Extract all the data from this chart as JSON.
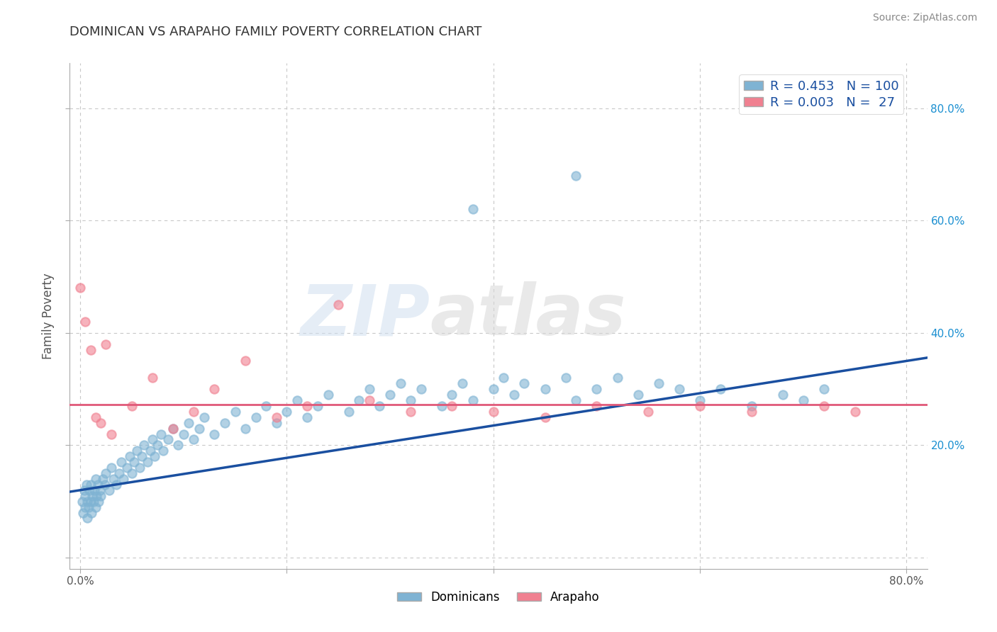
{
  "title": "DOMINICAN VS ARAPAHO FAMILY POVERTY CORRELATION CHART",
  "source": "Source: ZipAtlas.com",
  "ylabel": "Family Poverty",
  "xlim": [
    -0.01,
    0.82
  ],
  "ylim": [
    -0.02,
    0.88
  ],
  "xticks": [
    0.0,
    0.2,
    0.4,
    0.6,
    0.8
  ],
  "xtick_labels": [
    "0.0%",
    "",
    "",
    "",
    "80.0%"
  ],
  "yticks": [
    0.0,
    0.2,
    0.4,
    0.6,
    0.8
  ],
  "right_ytick_labels": [
    "",
    "20.0%",
    "40.0%",
    "60.0%",
    "80.0%"
  ],
  "dominican_color": "#7fb3d3",
  "arapaho_color": "#f08090",
  "dominican_R": 0.453,
  "dominican_N": 100,
  "arapaho_R": 0.003,
  "arapaho_N": 27,
  "trend_blue": "#1a4fa0",
  "trend_pink": "#e05878",
  "watermark": "ZIPatlas",
  "watermark_blue": "#d0dff0",
  "watermark_gray": "#d8d8d8",
  "grid_color": "#c8c8c8",
  "title_color": "#333333",
  "legend_R_color": "#1a4fa0",
  "legend_N_color": "#1a4fa0",
  "dot_size": 80,
  "dot_alpha": 0.6,
  "background_color": "#ffffff",
  "dominican_x": [
    0.002,
    0.003,
    0.004,
    0.005,
    0.005,
    0.006,
    0.007,
    0.007,
    0.008,
    0.009,
    0.01,
    0.01,
    0.011,
    0.012,
    0.013,
    0.014,
    0.015,
    0.015,
    0.016,
    0.017,
    0.018,
    0.019,
    0.02,
    0.022,
    0.024,
    0.025,
    0.028,
    0.03,
    0.032,
    0.035,
    0.038,
    0.04,
    0.042,
    0.045,
    0.048,
    0.05,
    0.052,
    0.055,
    0.058,
    0.06,
    0.062,
    0.065,
    0.068,
    0.07,
    0.072,
    0.075,
    0.078,
    0.08,
    0.085,
    0.09,
    0.095,
    0.1,
    0.105,
    0.11,
    0.115,
    0.12,
    0.13,
    0.14,
    0.15,
    0.16,
    0.17,
    0.18,
    0.19,
    0.2,
    0.21,
    0.22,
    0.23,
    0.24,
    0.26,
    0.27,
    0.28,
    0.29,
    0.3,
    0.31,
    0.32,
    0.33,
    0.35,
    0.36,
    0.37,
    0.38,
    0.4,
    0.41,
    0.42,
    0.43,
    0.45,
    0.47,
    0.48,
    0.5,
    0.52,
    0.54,
    0.56,
    0.58,
    0.6,
    0.62,
    0.65,
    0.68,
    0.7,
    0.72,
    0.48,
    0.38
  ],
  "dominican_y": [
    0.1,
    0.08,
    0.12,
    0.09,
    0.11,
    0.13,
    0.07,
    0.1,
    0.09,
    0.12,
    0.1,
    0.13,
    0.08,
    0.11,
    0.1,
    0.12,
    0.09,
    0.14,
    0.11,
    0.13,
    0.1,
    0.12,
    0.11,
    0.14,
    0.13,
    0.15,
    0.12,
    0.16,
    0.14,
    0.13,
    0.15,
    0.17,
    0.14,
    0.16,
    0.18,
    0.15,
    0.17,
    0.19,
    0.16,
    0.18,
    0.2,
    0.17,
    0.19,
    0.21,
    0.18,
    0.2,
    0.22,
    0.19,
    0.21,
    0.23,
    0.2,
    0.22,
    0.24,
    0.21,
    0.23,
    0.25,
    0.22,
    0.24,
    0.26,
    0.23,
    0.25,
    0.27,
    0.24,
    0.26,
    0.28,
    0.25,
    0.27,
    0.29,
    0.26,
    0.28,
    0.3,
    0.27,
    0.29,
    0.31,
    0.28,
    0.3,
    0.27,
    0.29,
    0.31,
    0.28,
    0.3,
    0.32,
    0.29,
    0.31,
    0.3,
    0.32,
    0.28,
    0.3,
    0.32,
    0.29,
    0.31,
    0.3,
    0.28,
    0.3,
    0.27,
    0.29,
    0.28,
    0.3,
    0.68,
    0.62
  ],
  "arapaho_x": [
    0.0,
    0.005,
    0.01,
    0.015,
    0.02,
    0.025,
    0.03,
    0.05,
    0.07,
    0.09,
    0.11,
    0.13,
    0.16,
    0.19,
    0.22,
    0.25,
    0.28,
    0.32,
    0.36,
    0.4,
    0.45,
    0.5,
    0.55,
    0.6,
    0.65,
    0.72,
    0.75
  ],
  "arapaho_y": [
    0.48,
    0.42,
    0.37,
    0.25,
    0.24,
    0.38,
    0.22,
    0.27,
    0.32,
    0.23,
    0.26,
    0.3,
    0.35,
    0.25,
    0.27,
    0.45,
    0.28,
    0.26,
    0.27,
    0.26,
    0.25,
    0.27,
    0.26,
    0.27,
    0.26,
    0.27,
    0.26
  ]
}
